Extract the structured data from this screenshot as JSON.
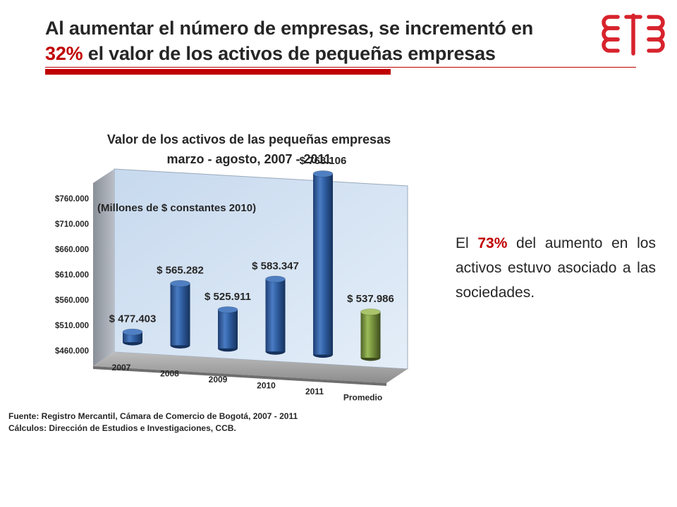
{
  "header": {
    "title_line1": "Al aumentar el número de empresas, se incrementó  en",
    "title_highlight": "32%",
    "title_line2_rest": " el valor de los activos de pequeñas empresas",
    "accent_color": "#c00000"
  },
  "logo": {
    "icon": "ccb-logo-icon",
    "color": "#d7232d"
  },
  "side_note": {
    "prefix": "El ",
    "highlight": "73%",
    "suffix": " del aumento en los activos estuvo asociado a las sociedades."
  },
  "chart_data": {
    "type": "bar",
    "title_line1": "Valor de los activos de las pequeñas empresas",
    "title_line2": "marzo - agosto, 2007 - 2011",
    "subtitle": "(Millones de $ constantes 2010)",
    "categories": [
      "2007",
      "2008",
      "2009",
      "2010",
      "2011",
      "Promedio"
    ],
    "values": [
      477403,
      565282,
      525911,
      583347,
      768106,
      537986
    ],
    "value_labels": [
      "$ 477.403",
      "$ 565.282",
      "$ 525.911",
      "$ 583.347",
      "$ 768.106",
      "$ 537.986"
    ],
    "y_ticks": [
      "$460.000",
      "$510.000",
      "$560.000",
      "$610.000",
      "$660.000",
      "$710.000",
      "$760.000"
    ],
    "ylim": [
      460000,
      760000
    ],
    "bar_colors": [
      "#2e5d9f",
      "#2e5d9f",
      "#2e5d9f",
      "#2e5d9f",
      "#2e5d9f",
      "#76923c"
    ],
    "grid": false
  },
  "source": {
    "line1": "Fuente: Registro Mercantil, Cámara de Comercio de Bogotá, 2007 - 2011",
    "line2": "Cálculos: Dirección de Estudios e Investigaciones, CCB."
  }
}
